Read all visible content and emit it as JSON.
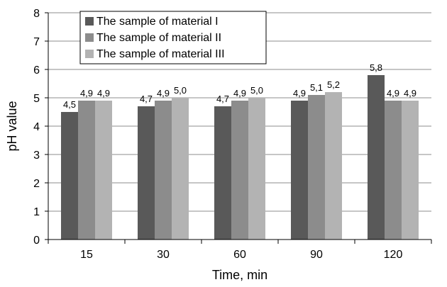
{
  "chart_data": {
    "type": "bar",
    "categories": [
      "15",
      "30",
      "60",
      "90",
      "120"
    ],
    "series": [
      {
        "name": "The sample of material I",
        "values": [
          4.5,
          4.7,
          4.7,
          4.9,
          5.8
        ],
        "labels": [
          "4,5",
          "4,7",
          "4,7",
          "4,9",
          "5,8"
        ],
        "color": "#595959"
      },
      {
        "name": "The sample of material II",
        "values": [
          4.9,
          4.9,
          4.9,
          5.1,
          4.9
        ],
        "labels": [
          "4,9",
          "4,9",
          "4,9",
          "5,1",
          "4,9"
        ],
        "color": "#8c8c8c"
      },
      {
        "name": "The sample of material III",
        "values": [
          4.9,
          5.0,
          5.0,
          5.2,
          4.9
        ],
        "labels": [
          "4,9",
          "5,0",
          "5,0",
          "5,2",
          "4,9"
        ],
        "color": "#b3b3b3"
      }
    ],
    "xlabel": "Time, min",
    "ylabel": "pH value",
    "ylim": [
      0,
      8
    ],
    "yticks": [
      "0",
      "1",
      "2",
      "3",
      "4",
      "5",
      "6",
      "7",
      "8"
    ],
    "grid": true,
    "legend_position": "top-left"
  }
}
